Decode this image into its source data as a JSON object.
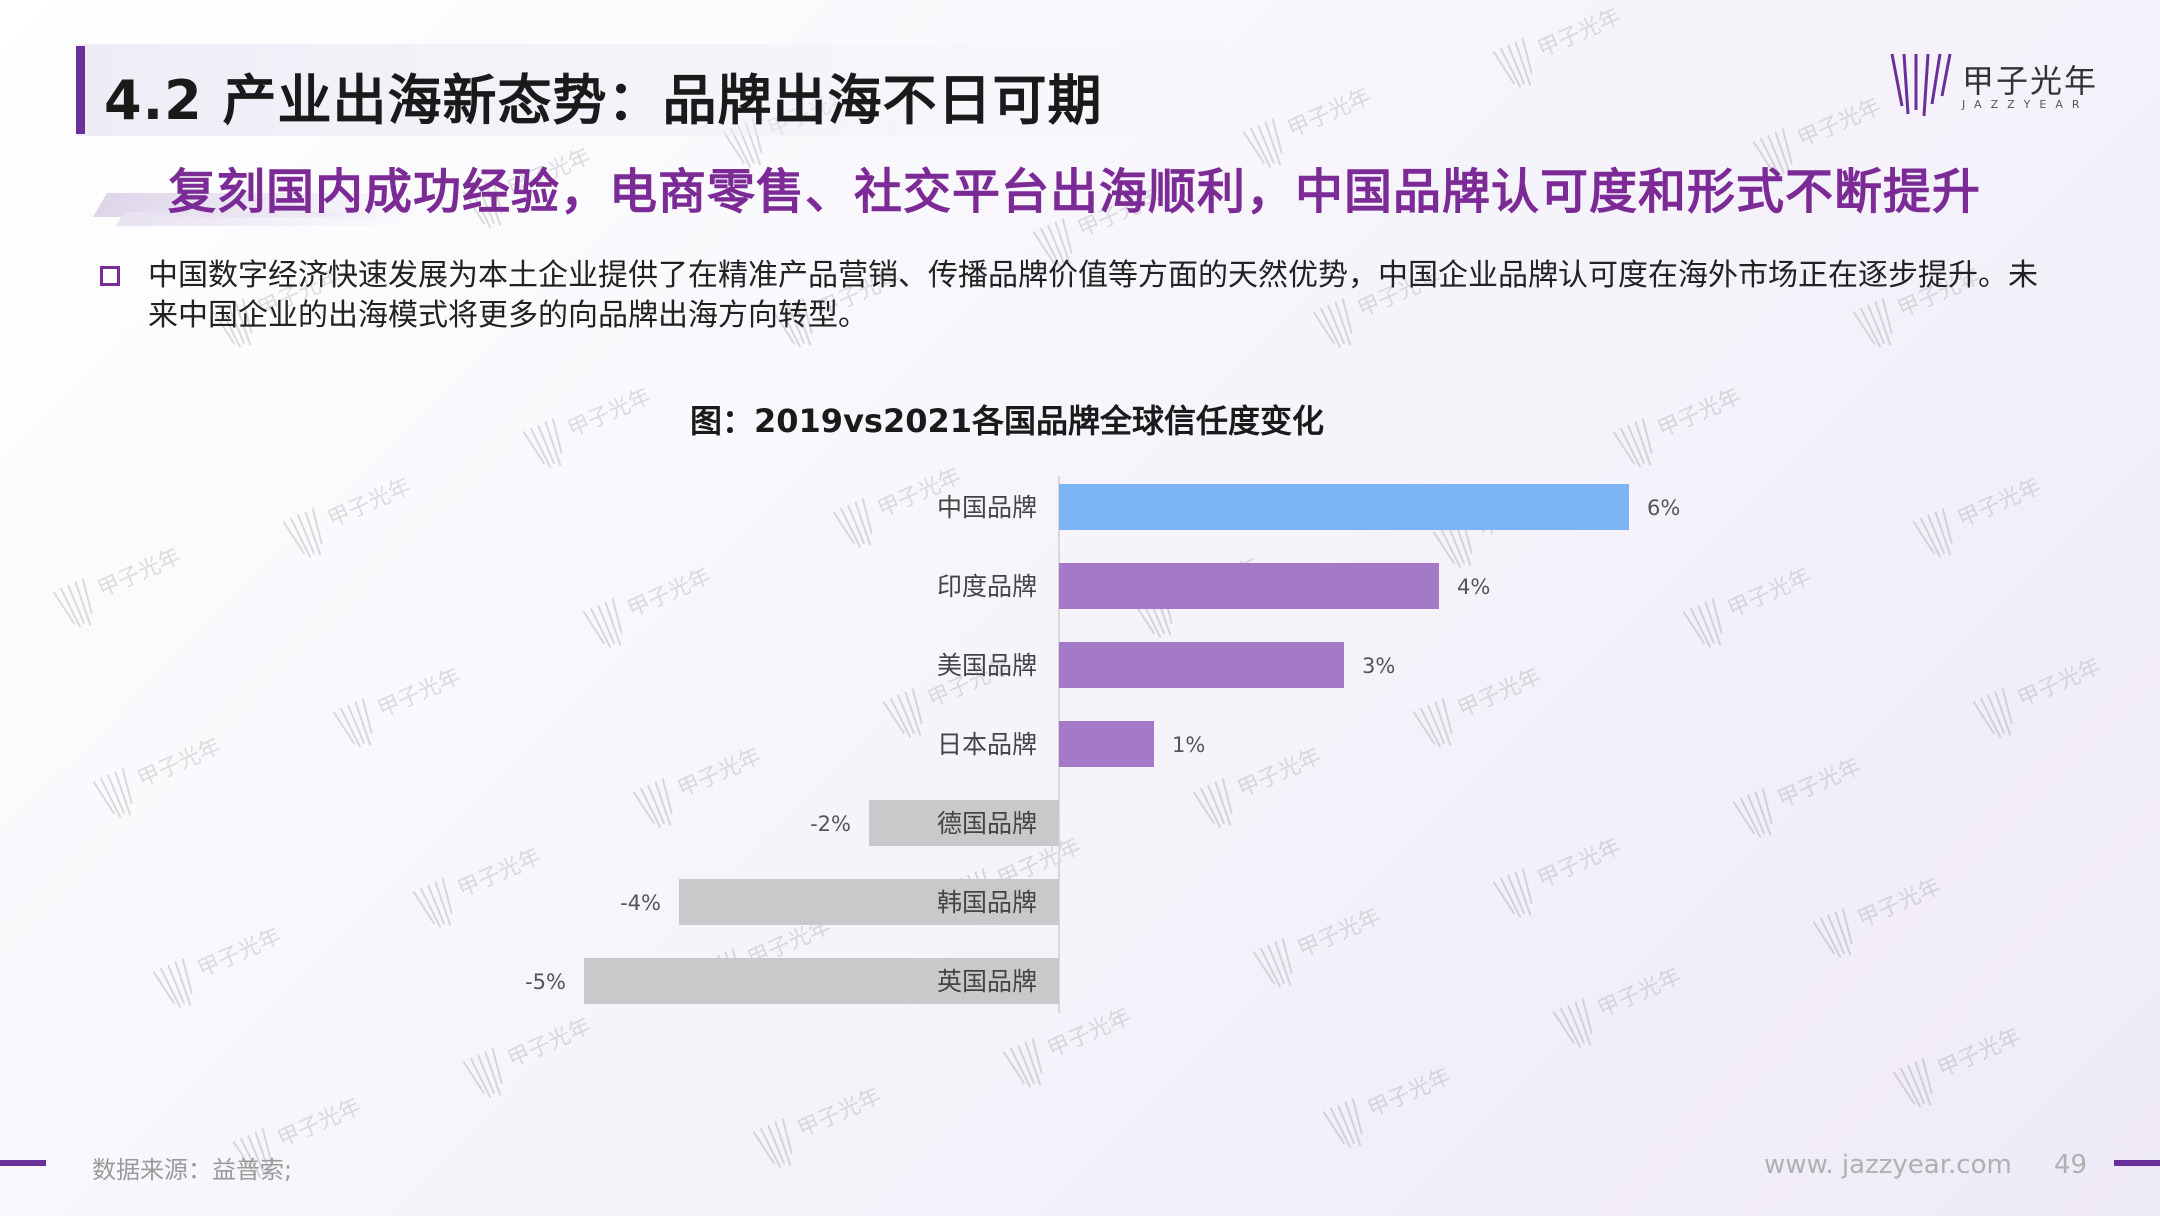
{
  "header": {
    "title": "4.2 产业出海新态势：品牌出海不日可期",
    "subtitle": "复刻国内成功经验，电商零售、社交平台出海顺利，中国品牌认可度和形式不断提升"
  },
  "logo": {
    "name": "甲子光年",
    "sub": "JAZZYEAR"
  },
  "body": {
    "paragraph": "中国数字经济快速发展为本土企业提供了在精准产品营销、传播品牌价值等方面的天然优势，中国企业品牌认可度在海外市场正在逐步提升。未来中国企业的出海模式将更多的向品牌出海方向转型。"
  },
  "chart_data": {
    "type": "bar",
    "orientation": "horizontal",
    "title": "图：2019vs2021各国品牌全球信任度变化",
    "categories": [
      "中国品牌",
      "印度品牌",
      "美国品牌",
      "日本品牌",
      "德国品牌",
      "韩国品牌",
      "英国品牌"
    ],
    "values": [
      6,
      4,
      3,
      1,
      -2,
      -4,
      -5
    ],
    "labels": [
      "6%",
      "4%",
      "3%",
      "1%",
      "-2%",
      "-4%",
      "-5%"
    ],
    "colors": [
      "#7db4f5",
      "#a479c8",
      "#a479c8",
      "#a479c8",
      "#c9c9cc",
      "#c9c9cc",
      "#c9c9cc"
    ],
    "xlabel": "",
    "ylabel": "",
    "xlim": [
      -5.5,
      6
    ],
    "grid": false,
    "legend": "none"
  },
  "footer": {
    "source": "数据来源：益普索;",
    "url": "www. jazzyear.com",
    "page": "49"
  }
}
